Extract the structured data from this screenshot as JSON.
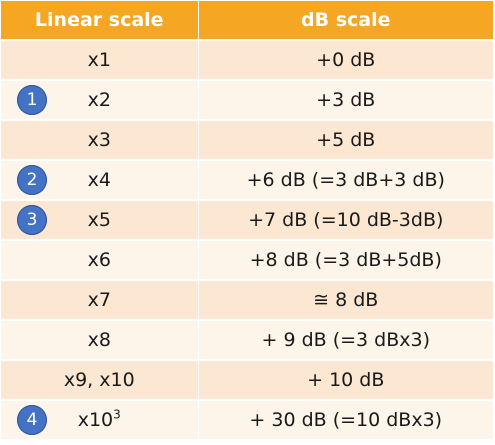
{
  "header": {
    "col1": "Linear scale",
    "col2": "dB scale"
  },
  "rows": [
    {
      "badge": "",
      "linear": "x1",
      "sup": "",
      "db": "+0 dB"
    },
    {
      "badge": "1",
      "linear": "x2",
      "sup": "",
      "db": "+3 dB"
    },
    {
      "badge": "",
      "linear": "x3",
      "sup": "",
      "db": "+5 dB"
    },
    {
      "badge": "2",
      "linear": "x4",
      "sup": "",
      "db": "+6 dB (=3 dB+3 dB)"
    },
    {
      "badge": "3",
      "linear": "x5",
      "sup": "",
      "db": "+7 dB (=10 dB-3dB)"
    },
    {
      "badge": "",
      "linear": "x6",
      "sup": "",
      "db": "+8 dB (=3 dB+5dB)"
    },
    {
      "badge": "",
      "linear": "x7",
      "sup": "",
      "db": "≅ 8 dB"
    },
    {
      "badge": "",
      "linear": "x8",
      "sup": "",
      "db": "+ 9 dB (=3 dBx3)"
    },
    {
      "badge": "",
      "linear": "x9, x10",
      "sup": "",
      "db": "+ 10 dB"
    },
    {
      "badge": "4",
      "linear": "x10",
      "sup": "3",
      "db": "+ 30 dB (=10 dBx3)"
    }
  ]
}
